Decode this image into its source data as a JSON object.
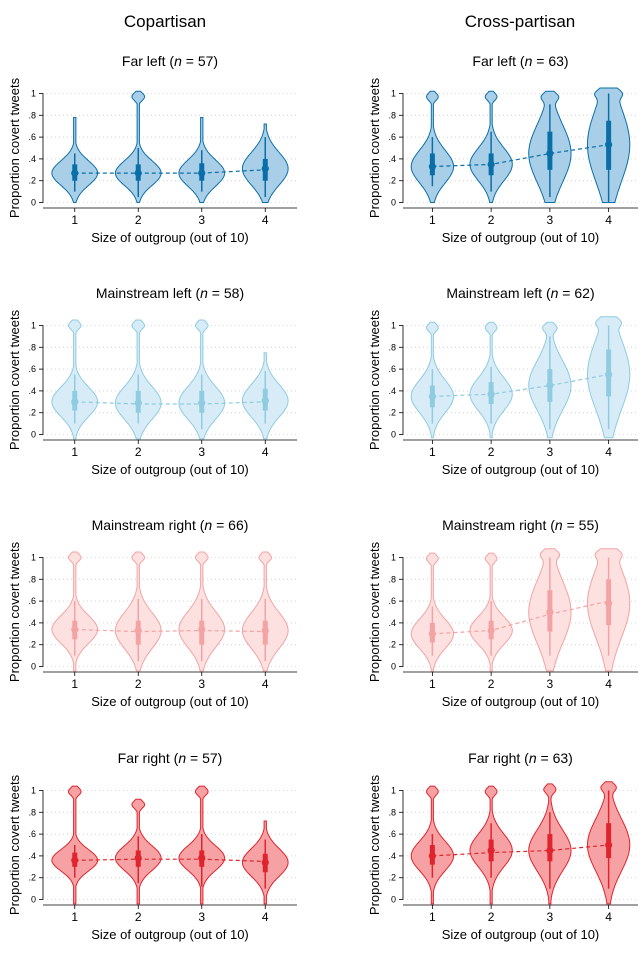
{
  "columns": [
    "Copartisan",
    "Cross-partisan"
  ],
  "colors": {
    "far_left": {
      "fill": "#a9cfe8",
      "line": "#0a6fa8"
    },
    "mainstream_left": {
      "fill": "#d7ecf6",
      "line": "#8fcbe1"
    },
    "mainstream_right": {
      "fill": "#fde0e0",
      "line": "#f3a3a3"
    },
    "far_right": {
      "fill": "#f6a1a3",
      "line": "#e0242e"
    }
  },
  "chart_data": [
    {
      "type": "violin",
      "column": "Copartisan",
      "group": "Far left",
      "n": "57",
      "color_key": "far_left",
      "xlabel": "Size of outgroup (out of 10)",
      "ylabel": "Proportion covert tweets",
      "categories": [
        "1",
        "2",
        "3",
        "4"
      ],
      "ylim": [
        -0.05,
        1.05
      ],
      "yticks": [
        "0",
        ".2",
        ".4",
        ".6",
        ".8",
        "1"
      ],
      "medians": [
        0.27,
        0.27,
        0.27,
        0.31
      ],
      "means": [
        0.27,
        0.27,
        0.27,
        0.3
      ],
      "iqr": [
        [
          0.2,
          0.35
        ],
        [
          0.2,
          0.35
        ],
        [
          0.2,
          0.36
        ],
        [
          0.2,
          0.4
        ]
      ],
      "whiskers": [
        [
          0.1,
          0.45
        ],
        [
          0.05,
          0.5
        ],
        [
          0.1,
          0.48
        ],
        [
          0.05,
          0.6
        ]
      ],
      "range": [
        [
          0.0,
          0.78
        ],
        [
          0.0,
          1.02
        ],
        [
          0.0,
          0.78
        ],
        [
          0.0,
          0.72
        ]
      ]
    },
    {
      "type": "violin",
      "column": "Cross-partisan",
      "group": "Far left",
      "n": "63",
      "color_key": "far_left",
      "xlabel": "Size of outgroup (out of 10)",
      "ylabel": "Proportion covert tweets",
      "categories": [
        "1",
        "2",
        "3",
        "4"
      ],
      "ylim": [
        -0.05,
        1.05
      ],
      "yticks": [
        "0",
        ".2",
        ".4",
        ".6",
        ".8",
        "1"
      ],
      "medians": [
        0.33,
        0.35,
        0.45,
        0.53
      ],
      "means": [
        0.33,
        0.35,
        0.45,
        0.53
      ],
      "iqr": [
        [
          0.25,
          0.45
        ],
        [
          0.25,
          0.45
        ],
        [
          0.3,
          0.65
        ],
        [
          0.3,
          0.75
        ]
      ],
      "whiskers": [
        [
          0.15,
          0.6
        ],
        [
          0.1,
          0.65
        ],
        [
          0.05,
          0.9
        ],
        [
          0.0,
          1.0
        ]
      ],
      "range": [
        [
          0.0,
          1.02
        ],
        [
          0.0,
          1.02
        ],
        [
          0.0,
          1.02
        ],
        [
          0.0,
          1.05
        ]
      ]
    },
    {
      "type": "violin",
      "column": "Copartisan",
      "group": "Mainstream left",
      "n": "58",
      "color_key": "mainstream_left",
      "xlabel": "Size of outgroup (out of 10)",
      "ylabel": "Proportion covert tweets",
      "categories": [
        "1",
        "2",
        "3",
        "4"
      ],
      "ylim": [
        -0.05,
        1.05
      ],
      "yticks": [
        "0",
        ".2",
        ".4",
        ".6",
        ".8",
        "1"
      ],
      "medians": [
        0.3,
        0.29,
        0.29,
        0.31
      ],
      "means": [
        0.3,
        0.28,
        0.28,
        0.3
      ],
      "iqr": [
        [
          0.22,
          0.4
        ],
        [
          0.2,
          0.4
        ],
        [
          0.2,
          0.4
        ],
        [
          0.22,
          0.42
        ]
      ],
      "whiskers": [
        [
          0.1,
          0.55
        ],
        [
          0.1,
          0.55
        ],
        [
          0.05,
          0.55
        ],
        [
          0.1,
          0.58
        ]
      ],
      "range": [
        [
          -0.04,
          1.05
        ],
        [
          -0.04,
          1.05
        ],
        [
          -0.04,
          1.05
        ],
        [
          -0.04,
          0.75
        ]
      ]
    },
    {
      "type": "violin",
      "column": "Cross-partisan",
      "group": "Mainstream left",
      "n": "62",
      "color_key": "mainstream_left",
      "xlabel": "Size of outgroup (out of 10)",
      "ylabel": "Proportion covert tweets",
      "categories": [
        "1",
        "2",
        "3",
        "4"
      ],
      "ylim": [
        -0.05,
        1.05
      ],
      "yticks": [
        "0",
        ".2",
        ".4",
        ".6",
        ".8",
        "1"
      ],
      "medians": [
        0.35,
        0.37,
        0.45,
        0.55
      ],
      "means": [
        0.35,
        0.37,
        0.45,
        0.55
      ],
      "iqr": [
        [
          0.25,
          0.45
        ],
        [
          0.28,
          0.48
        ],
        [
          0.3,
          0.6
        ],
        [
          0.35,
          0.78
        ]
      ],
      "whiskers": [
        [
          0.1,
          0.6
        ],
        [
          0.1,
          0.62
        ],
        [
          0.05,
          0.9
        ],
        [
          0.05,
          1.0
        ]
      ],
      "range": [
        [
          -0.03,
          1.03
        ],
        [
          -0.03,
          1.03
        ],
        [
          -0.03,
          1.03
        ],
        [
          -0.03,
          1.08
        ]
      ]
    },
    {
      "type": "violin",
      "column": "Copartisan",
      "group": "Mainstream right",
      "n": "66",
      "color_key": "mainstream_right",
      "xlabel": "Size of outgroup (out of 10)",
      "ylabel": "Proportion covert tweets",
      "categories": [
        "1",
        "2",
        "3",
        "4"
      ],
      "ylim": [
        -0.05,
        1.05
      ],
      "yticks": [
        "0",
        ".2",
        ".4",
        ".6",
        ".8",
        "1"
      ],
      "medians": [
        0.34,
        0.33,
        0.34,
        0.33
      ],
      "means": [
        0.34,
        0.32,
        0.33,
        0.32
      ],
      "iqr": [
        [
          0.25,
          0.42
        ],
        [
          0.2,
          0.42
        ],
        [
          0.2,
          0.42
        ],
        [
          0.2,
          0.42
        ]
      ],
      "whiskers": [
        [
          0.1,
          0.6
        ],
        [
          0.05,
          0.62
        ],
        [
          0.05,
          0.62
        ],
        [
          0.05,
          0.62
        ]
      ],
      "range": [
        [
          -0.04,
          1.05
        ],
        [
          -0.04,
          1.05
        ],
        [
          -0.04,
          1.05
        ],
        [
          -0.04,
          1.05
        ]
      ]
    },
    {
      "type": "violin",
      "column": "Cross-partisan",
      "group": "Mainstream right",
      "n": "55",
      "color_key": "mainstream_right",
      "xlabel": "Size of outgroup (out of 10)",
      "ylabel": "Proportion covert tweets",
      "categories": [
        "1",
        "2",
        "3",
        "4"
      ],
      "ylim": [
        -0.05,
        1.05
      ],
      "yticks": [
        "0",
        ".2",
        ".4",
        ".6",
        ".8",
        "1"
      ],
      "medians": [
        0.3,
        0.33,
        0.5,
        0.58
      ],
      "means": [
        0.3,
        0.33,
        0.48,
        0.6
      ],
      "iqr": [
        [
          0.22,
          0.4
        ],
        [
          0.25,
          0.42
        ],
        [
          0.32,
          0.7
        ],
        [
          0.38,
          0.8
        ]
      ],
      "whiskers": [
        [
          0.1,
          0.55
        ],
        [
          0.1,
          0.6
        ],
        [
          0.1,
          1.0
        ],
        [
          0.1,
          1.0
        ]
      ],
      "range": [
        [
          -0.04,
          1.04
        ],
        [
          -0.04,
          1.04
        ],
        [
          -0.04,
          1.08
        ],
        [
          -0.04,
          1.08
        ]
      ]
    },
    {
      "type": "violin",
      "column": "Copartisan",
      "group": "Far right",
      "n": "57",
      "color_key": "far_right",
      "xlabel": "Size of outgroup (out of 10)",
      "ylabel": "Proportion covert tweets",
      "categories": [
        "1",
        "2",
        "3",
        "4"
      ],
      "ylim": [
        -0.05,
        1.05
      ],
      "yticks": [
        "0",
        ".2",
        ".4",
        ".6",
        ".8",
        "1"
      ],
      "medians": [
        0.36,
        0.38,
        0.38,
        0.34
      ],
      "means": [
        0.36,
        0.37,
        0.37,
        0.35
      ],
      "iqr": [
        [
          0.3,
          0.43
        ],
        [
          0.3,
          0.45
        ],
        [
          0.3,
          0.45
        ],
        [
          0.25,
          0.42
        ]
      ],
      "whiskers": [
        [
          0.2,
          0.5
        ],
        [
          0.15,
          0.58
        ],
        [
          0.12,
          0.6
        ],
        [
          0.1,
          0.55
        ]
      ],
      "range": [
        [
          -0.04,
          1.04
        ],
        [
          -0.04,
          0.92
        ],
        [
          -0.04,
          1.04
        ],
        [
          -0.04,
          0.72
        ]
      ]
    },
    {
      "type": "violin",
      "column": "Cross-partisan",
      "group": "Far right",
      "n": "63",
      "color_key": "far_right",
      "xlabel": "Size of outgroup (out of 10)",
      "ylabel": "Proportion covert tweets",
      "categories": [
        "1",
        "2",
        "3",
        "4"
      ],
      "ylim": [
        -0.05,
        1.05
      ],
      "yticks": [
        "0",
        ".2",
        ".4",
        ".6",
        ".8",
        "1"
      ],
      "medians": [
        0.4,
        0.45,
        0.45,
        0.5
      ],
      "means": [
        0.4,
        0.43,
        0.45,
        0.5
      ],
      "iqr": [
        [
          0.32,
          0.5
        ],
        [
          0.35,
          0.55
        ],
        [
          0.35,
          0.6
        ],
        [
          0.38,
          0.7
        ]
      ],
      "whiskers": [
        [
          0.2,
          0.6
        ],
        [
          0.2,
          0.7
        ],
        [
          0.1,
          0.8
        ],
        [
          0.1,
          1.0
        ]
      ],
      "range": [
        [
          -0.04,
          1.04
        ],
        [
          -0.04,
          1.04
        ],
        [
          -0.04,
          1.06
        ],
        [
          -0.04,
          1.08
        ]
      ]
    }
  ]
}
